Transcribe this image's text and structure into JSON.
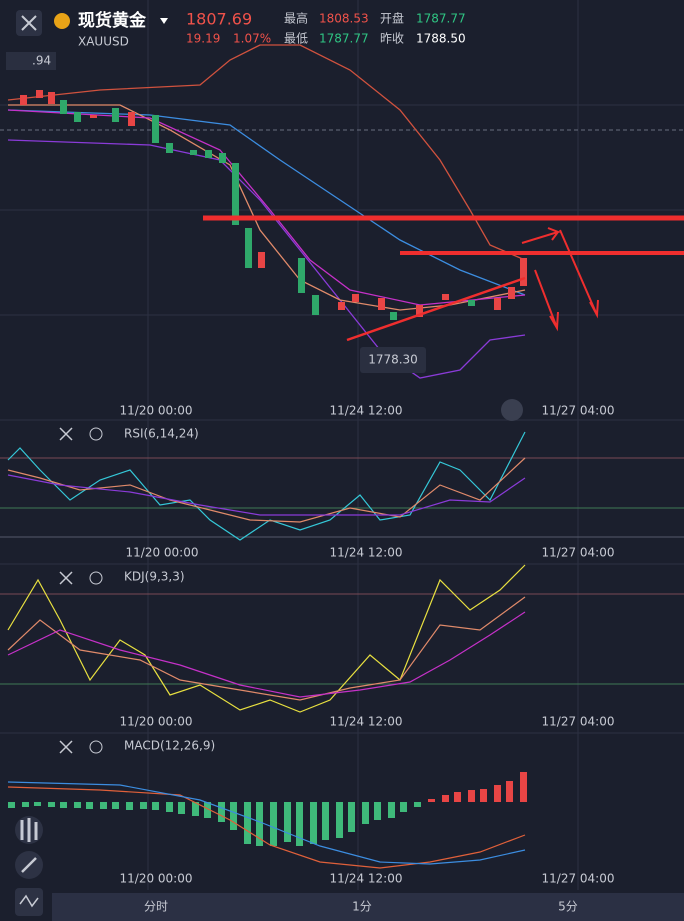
{
  "header": {
    "name": "现货黄金",
    "symbol": "XAUUSD",
    "price": "1807.69",
    "change": "19.19",
    "change_pct": "1.07%",
    "stats": [
      {
        "label": "最高",
        "value": "1808.53"
      },
      {
        "label": "开盘",
        "value": "1787.77"
      },
      {
        "label": "最低",
        "value": "1787.77"
      },
      {
        "label": "昨收",
        "value": "1788.50"
      }
    ]
  },
  "main_chart": {
    "left_label": ".94",
    "price_marker": "1778.30"
  },
  "time_axis": [
    "11/20 00:00",
    "11/24 12:00",
    "11/27 04:00"
  ],
  "indicators": [
    "RSI(6,14,24)",
    "KDJ(9,3,3)",
    "MACD(12,26,9)"
  ],
  "tabs": [
    "分时",
    "1分",
    "5分"
  ]
}
